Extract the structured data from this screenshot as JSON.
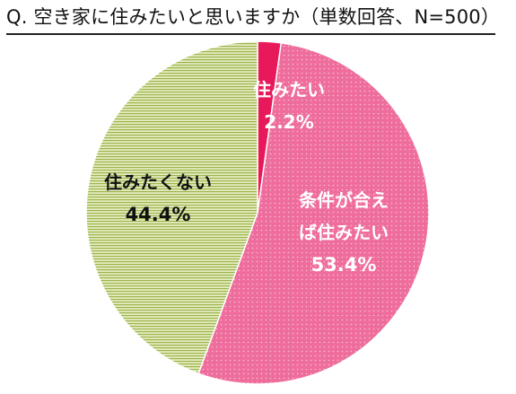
{
  "title": "Q. 空き家に住みたいと思いますか（単数回答、N=500）",
  "chart_data": {
    "type": "pie",
    "slices": [
      {
        "label": "住みたい",
        "value": 2.2,
        "value_text": "2.2%",
        "color": "#e8195a",
        "pattern": "none",
        "text_color": "#ffffff"
      },
      {
        "label": "条件が合えば住みたい",
        "label_lines": [
          "条件が合え",
          "ば住みたい"
        ],
        "value": 53.4,
        "value_text": "53.4%",
        "color": "#ee6d9c",
        "pattern": "dots",
        "text_color": "#ffffff"
      },
      {
        "label": "住みたくない",
        "value": 44.4,
        "value_text": "44.4%",
        "color": "#d7e2a6",
        "pattern": "horizontal-stripes",
        "text_color": "#111111"
      }
    ],
    "start_angle": "12 o'clock",
    "direction": "clockwise",
    "legend": "none"
  }
}
